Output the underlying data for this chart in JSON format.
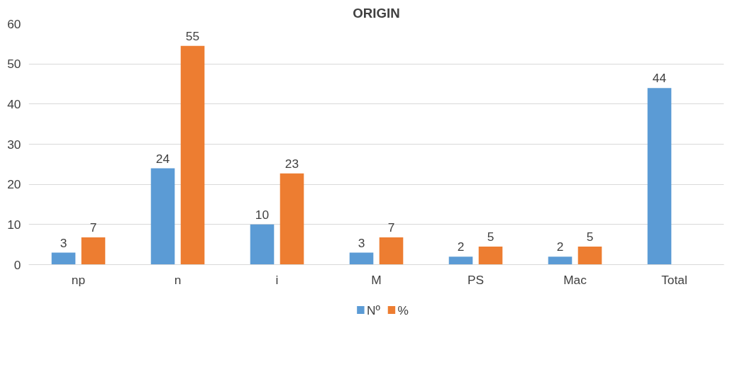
{
  "chart_data": {
    "type": "bar",
    "title": "ORIGIN",
    "categories": [
      "np",
      "n",
      "i",
      "M",
      "PS",
      "Mac",
      "Total"
    ],
    "series": [
      {
        "name": "Nº",
        "color": "#5b9bd5",
        "values": [
          3,
          24,
          10,
          3,
          2,
          2,
          44
        ],
        "value_labels": [
          "3",
          "24",
          "10",
          "3",
          "2",
          "2",
          "44"
        ]
      },
      {
        "name": "%",
        "color": "#ed7d31",
        "values": [
          6.8,
          54.5,
          22.7,
          6.8,
          4.5,
          4.5,
          null
        ],
        "value_labels": [
          "7",
          "55",
          "23",
          "7",
          "5",
          "5",
          null
        ]
      }
    ],
    "ylim": [
      0,
      60
    ],
    "yticks": [
      0,
      10,
      20,
      30,
      40,
      50,
      60
    ],
    "grid": "y",
    "legend": "bottom"
  }
}
